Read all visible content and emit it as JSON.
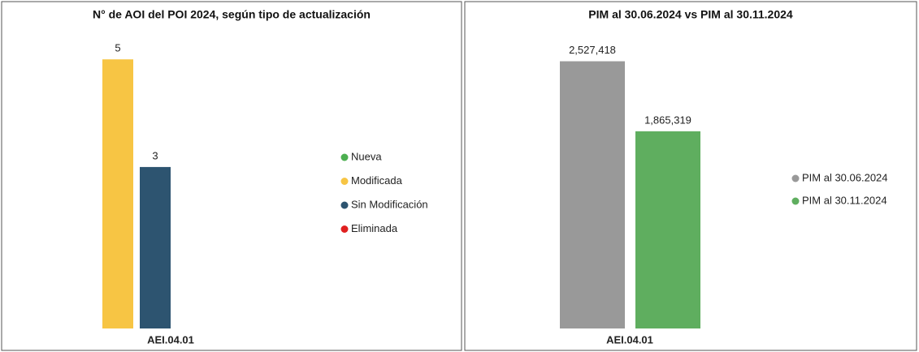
{
  "chart_data": [
    {
      "type": "bar",
      "title": "N° de AOI del POI 2024, según tipo de actualización",
      "categories": [
        "AEI.04.01"
      ],
      "series": [
        {
          "name": "Nueva",
          "color": "#4caf50",
          "values": [
            null
          ]
        },
        {
          "name": "Modificada",
          "color": "#f7c544",
          "values": [
            5
          ]
        },
        {
          "name": "Sin Modificación",
          "color": "#2d5470",
          "values": [
            3
          ]
        },
        {
          "name": "Eliminada",
          "color": "#e02020",
          "values": [
            null
          ]
        }
      ],
      "ylim": [
        0,
        5.5
      ],
      "legend": "right"
    },
    {
      "type": "bar",
      "title": "PIM al 30.06.2024 vs PIM al 30.11.2024",
      "categories": [
        "AEI.04.01"
      ],
      "series": [
        {
          "name": "PIM al 30.06.2024",
          "color": "#999999",
          "values": [
            2527418
          ],
          "value_labels": [
            "2,527,418"
          ]
        },
        {
          "name": "PIM al 30.11.2024",
          "color": "#5fae5f",
          "values": [
            1865319
          ],
          "value_labels": [
            "1,865,319"
          ]
        }
      ],
      "ylim": [
        0,
        2800000
      ],
      "legend": "right"
    }
  ]
}
